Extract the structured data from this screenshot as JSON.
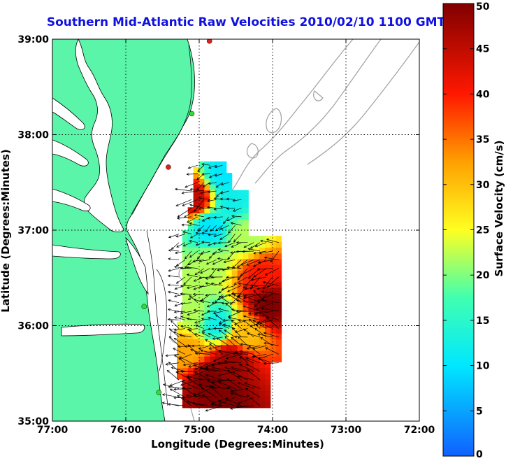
{
  "title": "Southern Mid-Atlantic Raw Velocities 2010/02/10 1100 GMT",
  "x_axis": {
    "label": "Longitude (Degrees:Minutes)",
    "ticks": [
      "77:00",
      "76:00",
      "75:00",
      "74:00",
      "73:00",
      "72:00"
    ]
  },
  "y_axis": {
    "label": "Latitude (Degrees:Minutes)",
    "ticks": [
      "39:00",
      "38:00",
      "37:00",
      "36:00",
      "35:00"
    ]
  },
  "colorbar": {
    "label": "Surface Velocity (cm/s)",
    "min": 0,
    "max": 50,
    "ticks": [
      "0",
      "5",
      "10",
      "15",
      "20",
      "25",
      "30",
      "35",
      "40",
      "45",
      "50"
    ]
  },
  "colors": {
    "land": "#5af5a8",
    "coastline": "#000000",
    "bathymetry": "#a0a0a0",
    "station_green": "#30e030",
    "station_red": "#e02020",
    "title": "#1010e0"
  },
  "chart_data": {
    "type": "heatmap",
    "extent": {
      "lon_west": -77.0,
      "lon_east": -72.0,
      "lat_south": 35.0,
      "lat_north": 39.0
    },
    "grid_on": true,
    "stations": [
      {
        "color": "red",
        "lat": 38.98,
        "lon": -74.86
      },
      {
        "color": "green",
        "lat": 38.22,
        "lon": -75.1
      },
      {
        "color": "red",
        "lat": 37.66,
        "lon": -75.42
      },
      {
        "color": "green",
        "lat": 36.2,
        "lon": -75.75
      },
      {
        "color": "green",
        "lat": 35.3,
        "lon": -75.55
      }
    ],
    "velocity_field": {
      "units": "cm/s",
      "value_range": [
        0,
        50
      ],
      "lat_range": [
        35.1,
        37.7
      ],
      "lon_range": [
        -75.35,
        -73.85
      ],
      "pattern": [
        {
          "lat": 37.55,
          "lon": -74.7,
          "speed": 10
        },
        {
          "lat": 37.3,
          "lon": -75.1,
          "speed": 45
        },
        {
          "lat": 37.3,
          "lon": -74.6,
          "speed": 12
        },
        {
          "lat": 37.0,
          "lon": -74.9,
          "speed": 10
        },
        {
          "lat": 36.9,
          "lon": -74.4,
          "speed": 22
        },
        {
          "lat": 36.6,
          "lon": -74.9,
          "speed": 22
        },
        {
          "lat": 36.5,
          "lon": -74.2,
          "speed": 40
        },
        {
          "lat": 36.2,
          "lon": -74.1,
          "speed": 50
        },
        {
          "lat": 36.0,
          "lon": -74.8,
          "speed": 12
        },
        {
          "lat": 36.1,
          "lon": -75.1,
          "speed": 22
        },
        {
          "lat": 35.9,
          "lon": -74.4,
          "speed": 30
        },
        {
          "lat": 35.7,
          "lon": -75.2,
          "speed": 32
        },
        {
          "lat": 35.6,
          "lon": -74.6,
          "speed": 48
        },
        {
          "lat": 35.4,
          "lon": -74.9,
          "speed": 50
        },
        {
          "lat": 35.2,
          "lon": -74.7,
          "speed": 50
        }
      ]
    }
  }
}
